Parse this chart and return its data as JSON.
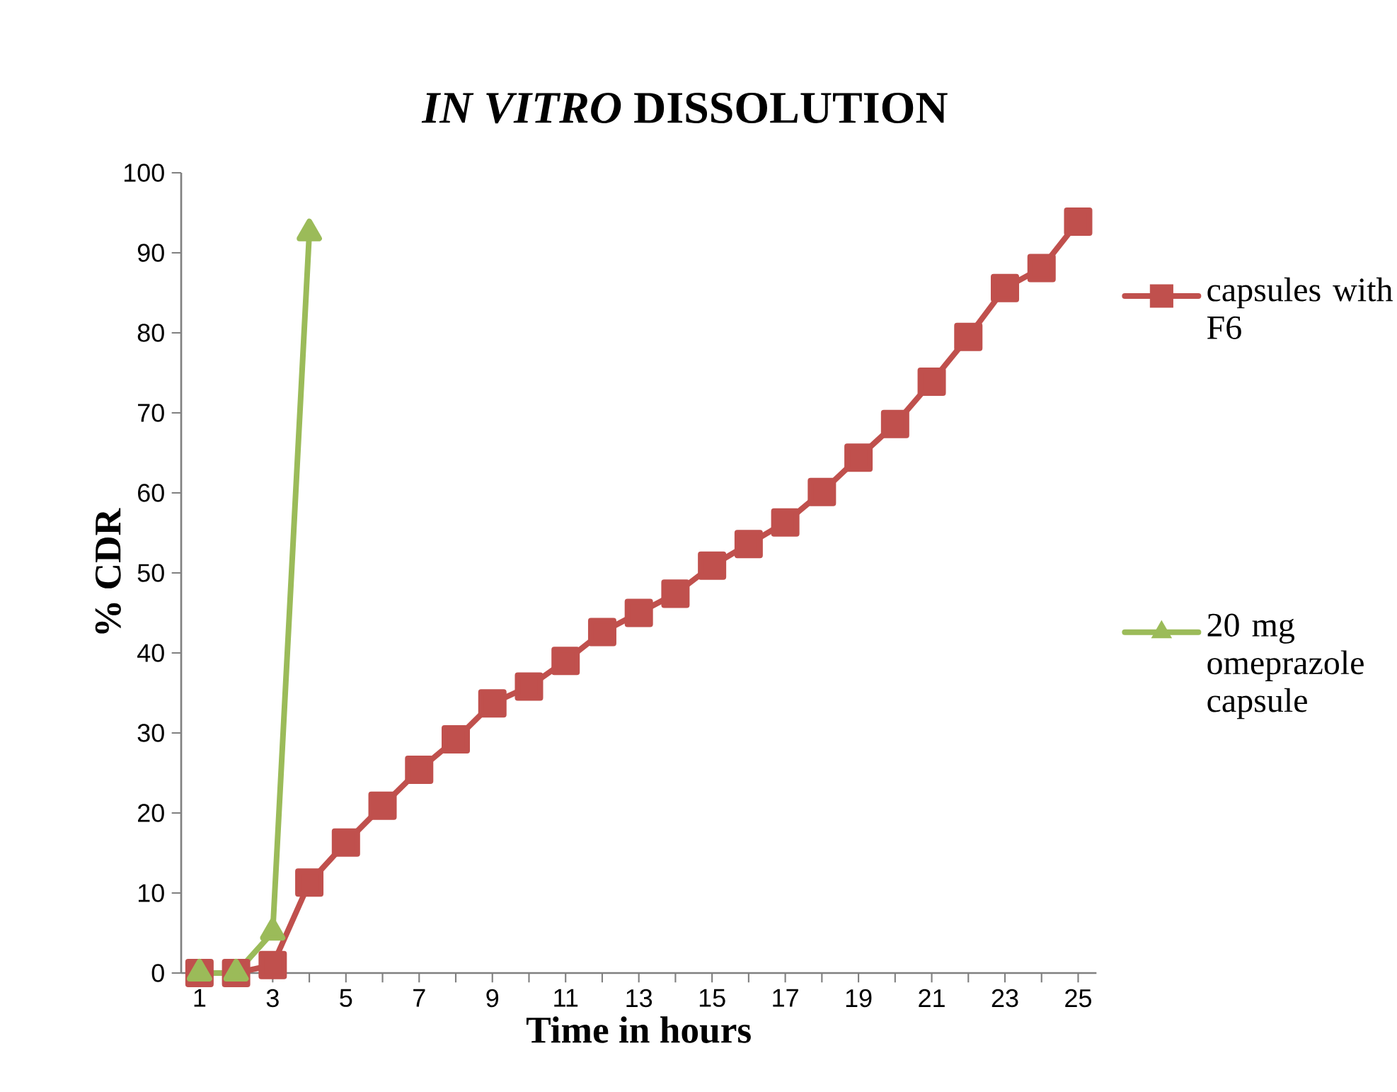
{
  "chart_data": {
    "type": "line",
    "title": "*IN VITRO* DISSOLUTION",
    "xlabel": "Time in hours",
    "ylabel": "% CDR",
    "categories": [
      "1",
      null,
      "3",
      null,
      "5",
      null,
      "7",
      null,
      "9",
      null,
      "11",
      null,
      "13",
      null,
      "15",
      null,
      "17",
      null,
      "19",
      null,
      "21",
      null,
      "23",
      null,
      "25"
    ],
    "series": [
      {
        "name": "capsules with F6",
        "color": "#c0504d",
        "marker": "square",
        "values": [
          0,
          0,
          1.0,
          11.3,
          16.3,
          20.9,
          25.4,
          29.2,
          33.7,
          35.8,
          39.0,
          42.6,
          45.0,
          47.4,
          50.9,
          53.6,
          56.3,
          60.1,
          64.4,
          68.6,
          73.9,
          79.5,
          85.6,
          88.1,
          93.9
        ]
      },
      {
        "name": "20 mg omeprazole capsule",
        "color": "#9bbb59",
        "marker": "triangle",
        "values": [
          0,
          0,
          5.1,
          92.5,
          null,
          null,
          null,
          null,
          null,
          null,
          null,
          null,
          null,
          null,
          null,
          null,
          null,
          null,
          null,
          null,
          null,
          null,
          null,
          null,
          null
        ]
      }
    ],
    "ylim": [
      0,
      100
    ],
    "yticks": [
      0,
      10,
      20,
      30,
      40,
      50,
      60,
      70,
      80,
      90,
      100
    ],
    "grid": false,
    "legend": "right",
    "line_style": "solid"
  }
}
